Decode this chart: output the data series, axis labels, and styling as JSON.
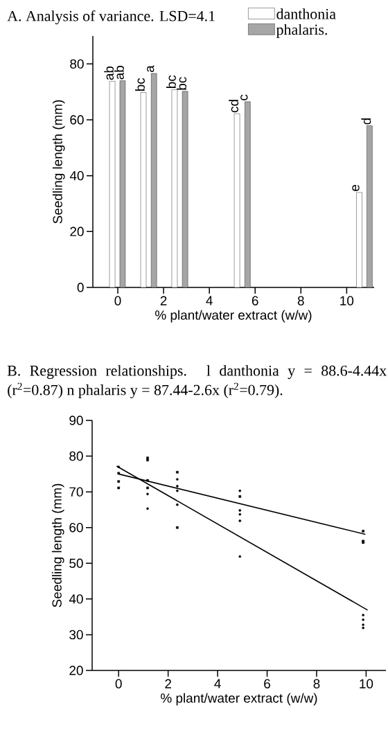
{
  "chart_data": [
    {
      "type": "bar",
      "title": "A. Analysis of variance. LSD=4.1",
      "xlabel": "% plant/water extract (w/w)",
      "ylabel": "Seedling length (mm)",
      "xlim": [
        -1.09,
        11.2
      ],
      "xticks": [
        0,
        2,
        4,
        6,
        8,
        10
      ],
      "ylim": [
        0,
        90
      ],
      "yticks": [
        0,
        20,
        40,
        60,
        80
      ],
      "legend": "top right",
      "series": [
        {
          "name": "danthonia",
          "color": "#ffffff",
          "x": [
            -0.24,
            1.12,
            2.48,
            5.21,
            10.55
          ],
          "values": [
            73.8,
            69.8,
            70.8,
            62.2,
            34.0
          ]
        },
        {
          "name": "phalaris.",
          "color": "#a6a6a6",
          "x": [
            0.21,
            1.58,
            2.94,
            5.67,
            11.0
          ],
          "values": [
            74.0,
            76.6,
            70.2,
            66.5,
            57.9
          ]
        }
      ],
      "annotations": [
        {
          "text": "ab",
          "x": -0.24,
          "y": 73.8
        },
        {
          "text": "bc",
          "x": 1.12,
          "y": 69.8
        },
        {
          "text": "bc",
          "x": 2.48,
          "y": 70.8
        },
        {
          "text": "cd",
          "x": 5.21,
          "y": 62.2
        },
        {
          "text": "e",
          "x": 10.55,
          "y": 34.0
        },
        {
          "text": "ab",
          "x": 0.21,
          "y": 74.0
        },
        {
          "text": "a",
          "x": 1.58,
          "y": 76.6
        },
        {
          "text": "bc",
          "x": 2.94,
          "y": 70.2
        },
        {
          "text": "c",
          "x": 5.67,
          "y": 66.5
        },
        {
          "text": "d",
          "x": 11.0,
          "y": 57.9
        }
      ]
    },
    {
      "type": "scatter",
      "title": "B. Regression relationships. l danthonia y = 88.6-4.44x (r$^{2}$=0.87) n phalaris y = 87.44-2.6x (r$^{2}$=0.79).",
      "xlabel": "% plant/water extract (w/w)",
      "ylabel": "Seedling length (mm)",
      "xlim": [
        -1.07,
        10.8
      ],
      "xticks": [
        0,
        2,
        4,
        6,
        8,
        10
      ],
      "ylim": [
        20,
        90
      ],
      "yticks": [
        20,
        30,
        40,
        50,
        60,
        70,
        80,
        90
      ],
      "series": [
        {
          "type": "scatter",
          "marker": "circle",
          "color": "#000000",
          "x": [
            0,
            1.17,
            1.17,
            2.37,
            2.37,
            2.37,
            2.37,
            4.9,
            4.9,
            4.9,
            4.9,
            4.9,
            9.88,
            9.88,
            9.88,
            9.88
          ],
          "values": [
            77.0,
            69.4,
            65.3,
            73.5,
            71.6,
            70.3,
            66.4,
            70.3,
            64.8,
            63.7,
            61.9,
            51.9,
            35.5,
            34.2,
            32.8,
            31.9
          ]
        },
        {
          "type": "scatter",
          "marker": "square",
          "color": "#000000",
          "x": [
            0,
            0,
            0,
            1.17,
            1.17,
            1.17,
            1.17,
            2.37,
            2.37,
            4.9,
            9.88,
            9.88,
            9.88
          ],
          "values": [
            75.2,
            72.9,
            71.1,
            79.5,
            78.9,
            73.2,
            71.1,
            75.5,
            60.0,
            68.7,
            59.0,
            56.2,
            55.8
          ]
        },
        {
          "type": "line",
          "color": "#000000",
          "x": [
            -0.08,
            10.06
          ],
          "values": [
            77.2,
            36.9
          ]
        },
        {
          "type": "line",
          "color": "#000000",
          "x": [
            0,
            9.97
          ],
          "values": [
            75.0,
            58.1
          ]
        }
      ]
    }
  ]
}
